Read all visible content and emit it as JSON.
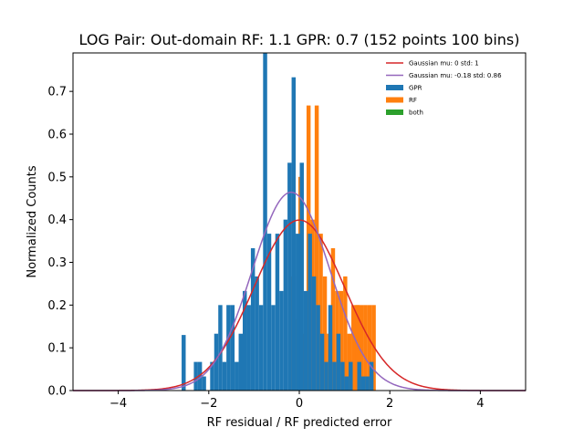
{
  "chart_data": {
    "type": "bar",
    "title": "LOG Pair: Out-domain RF: 1.1 GPR: 0.7 (152 points 100 bins)",
    "xlabel": "RF residual / RF predicted error",
    "ylabel": "Normalized Counts",
    "xlim": [
      -5.0,
      5.0
    ],
    "ylim": [
      0,
      0.79
    ],
    "xticks": [
      -4,
      -2,
      0,
      2,
      4
    ],
    "xtick_labels": [
      "−4",
      "−2",
      "0",
      "2",
      "4"
    ],
    "yticks": [
      0.0,
      0.1,
      0.2,
      0.3,
      0.4,
      0.5,
      0.6,
      0.7
    ],
    "ytick_labels": [
      "0.0",
      "0.1",
      "0.2",
      "0.3",
      "0.4",
      "0.5",
      "0.6",
      "0.7"
    ],
    "grid": false,
    "legend_position": "top-right",
    "gpr_bins": [
      [
        -2.6,
        -2.51,
        0.13
      ],
      [
        -2.33,
        -2.24,
        0.067
      ],
      [
        -2.24,
        -2.15,
        0.067
      ],
      [
        -2.15,
        -2.06,
        0.033
      ],
      [
        -1.97,
        -1.88,
        0.067
      ],
      [
        -1.88,
        -1.79,
        0.133
      ],
      [
        -1.79,
        -1.7,
        0.2
      ],
      [
        -1.7,
        -1.61,
        0.067
      ],
      [
        -1.61,
        -1.52,
        0.2
      ],
      [
        -1.52,
        -1.43,
        0.2
      ],
      [
        -1.43,
        -1.34,
        0.067
      ],
      [
        -1.34,
        -1.25,
        0.133
      ],
      [
        -1.25,
        -1.16,
        0.233
      ],
      [
        -1.16,
        -1.07,
        0.2
      ],
      [
        -1.07,
        -0.98,
        0.333
      ],
      [
        -0.98,
        -0.89,
        0.267
      ],
      [
        -0.89,
        -0.8,
        0.2
      ],
      [
        -0.8,
        -0.71,
        0.8
      ],
      [
        -0.71,
        -0.62,
        0.367
      ],
      [
        -0.62,
        -0.53,
        0.2
      ],
      [
        -0.53,
        -0.44,
        0.367
      ],
      [
        -0.44,
        -0.35,
        0.233
      ],
      [
        -0.35,
        -0.26,
        0.4
      ],
      [
        -0.26,
        -0.17,
        0.533
      ],
      [
        -0.17,
        -0.08,
        0.733
      ],
      [
        -0.08,
        0.01,
        0.367
      ],
      [
        0.01,
        0.1,
        0.533
      ],
      [
        0.1,
        0.19,
        0.233
      ],
      [
        0.19,
        0.28,
        0.367
      ],
      [
        0.28,
        0.37,
        0.267
      ],
      [
        0.37,
        0.46,
        0.2
      ],
      [
        0.46,
        0.55,
        0.133
      ],
      [
        0.55,
        0.64,
        0.067
      ],
      [
        0.64,
        0.73,
        0.2
      ],
      [
        0.73,
        0.82,
        0.067
      ],
      [
        0.82,
        0.91,
        0.133
      ],
      [
        0.91,
        1.0,
        0.067
      ],
      [
        1.0,
        1.09,
        0.033
      ],
      [
        1.09,
        1.18,
        0.067
      ],
      [
        1.28,
        1.37,
        0.067
      ],
      [
        1.37,
        1.46,
        0.033
      ],
      [
        1.46,
        1.55,
        0.033
      ],
      [
        1.55,
        1.64,
        0.067
      ]
    ],
    "rf_bins": [
      [
        -0.17,
        -0.08,
        0.267
      ],
      [
        -0.08,
        0.01,
        0.167
      ],
      [
        -0.02,
        0.07,
        0.5
      ],
      [
        0.07,
        0.16,
        0.133
      ],
      [
        0.16,
        0.25,
        0.667
      ],
      [
        0.25,
        0.34,
        0.4
      ],
      [
        0.34,
        0.43,
        0.667
      ],
      [
        0.43,
        0.52,
        0.367
      ],
      [
        0.52,
        0.61,
        0.267
      ],
      [
        0.61,
        0.7,
        0.133
      ],
      [
        0.7,
        0.79,
        0.333
      ],
      [
        0.79,
        0.88,
        0.233
      ],
      [
        0.88,
        0.97,
        0.233
      ],
      [
        0.97,
        1.06,
        0.267
      ],
      [
        1.06,
        1.15,
        0.133
      ],
      [
        1.15,
        1.24,
        0.2
      ],
      [
        1.24,
        1.33,
        0.2
      ],
      [
        1.33,
        1.42,
        0.2
      ],
      [
        1.42,
        1.51,
        0.2
      ],
      [
        1.51,
        1.6,
        0.2
      ],
      [
        1.6,
        1.69,
        0.2
      ],
      [
        1.24,
        1.33,
        0.2
      ]
    ],
    "series": [
      {
        "name": "Gaussian mu: 0 std: 1",
        "kind": "line",
        "mu": 0,
        "std": 1,
        "color": "#d62728"
      },
      {
        "name": "Gaussian mu: -0.18 std: 0.86",
        "kind": "line",
        "mu": -0.18,
        "std": 0.86,
        "color": "#9467bd"
      },
      {
        "name": "GPR",
        "kind": "hist",
        "color": "#1f77b4"
      },
      {
        "name": "RF",
        "kind": "hist",
        "color": "#ff7f0e"
      },
      {
        "name": "both",
        "kind": "hist",
        "color": "#2ca02c"
      }
    ]
  }
}
